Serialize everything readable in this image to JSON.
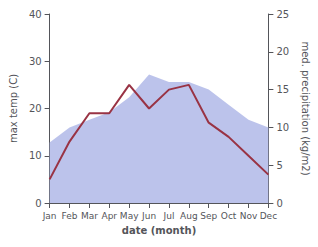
{
  "chart_data": {
    "type": "line",
    "categories": [
      "Jan",
      "Feb",
      "Mar",
      "Apr",
      "May",
      "Jun",
      "Jul",
      "Aug",
      "Sep",
      "Oct",
      "Nov",
      "Dec"
    ],
    "xlabel": "date (month)",
    "ylabel": "max temp (C)",
    "y2label": "med. precipitation (kg/m2)",
    "ylim": [
      0,
      40
    ],
    "yticks": [
      0,
      10,
      20,
      30,
      40
    ],
    "y2lim": [
      0,
      25
    ],
    "y2ticks": [
      0,
      5,
      10,
      15,
      20,
      25
    ],
    "grid": false,
    "series": [
      {
        "type": "area",
        "color": "#b0b8e8",
        "axis": "y2",
        "values": [
          8,
          10,
          11,
          12,
          14,
          17,
          16,
          16,
          15,
          13,
          11,
          10
        ]
      },
      {
        "type": "line",
        "color": "#993344",
        "values": [
          5,
          13,
          19,
          19,
          25,
          20,
          24,
          25,
          17,
          14,
          10,
          6
        ]
      }
    ]
  }
}
